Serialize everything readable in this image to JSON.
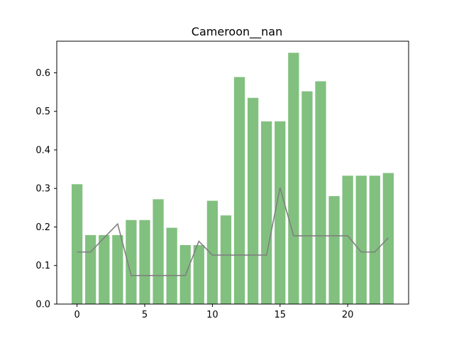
{
  "chart_data": {
    "type": "bar",
    "title": "Cameroon__nan",
    "xlabel": "",
    "ylabel": "",
    "xlim": [
      -1.5,
      24.5
    ],
    "ylim": [
      0,
      0.682
    ],
    "x_ticks": [
      0,
      5,
      10,
      15,
      20
    ],
    "y_ticks": [
      0.0,
      0.1,
      0.2,
      0.3,
      0.4,
      0.5,
      0.6
    ],
    "x_tick_labels": [
      "0",
      "5",
      "10",
      "15",
      "20"
    ],
    "y_tick_labels": [
      "0.0",
      "0.1",
      "0.2",
      "0.3",
      "0.4",
      "0.5",
      "0.6"
    ],
    "grid": false,
    "colors": {
      "bars": "#81c07f",
      "line": "#808080"
    },
    "series": [
      {
        "type": "bar",
        "x": [
          0,
          1,
          2,
          3,
          4,
          5,
          6,
          7,
          8,
          9,
          10,
          11,
          12,
          13,
          14,
          15,
          16,
          17,
          18,
          19,
          20,
          21,
          22,
          23
        ],
        "values": [
          0.311,
          0.179,
          0.179,
          0.179,
          0.218,
          0.218,
          0.272,
          0.198,
          0.153,
          0.153,
          0.268,
          0.23,
          0.589,
          0.535,
          0.474,
          0.474,
          0.652,
          0.552,
          0.578,
          0.28,
          0.333,
          0.333,
          0.333,
          0.34
        ]
      },
      {
        "type": "line",
        "x": [
          0,
          1,
          2,
          3,
          4,
          5,
          6,
          7,
          8,
          9,
          10,
          11,
          12,
          13,
          14,
          15,
          16,
          17,
          18,
          19,
          20,
          21,
          22,
          23
        ],
        "values": [
          0.135,
          0.135,
          0.172,
          0.208,
          0.074,
          0.074,
          0.074,
          0.074,
          0.074,
          0.163,
          0.127,
          0.127,
          0.127,
          0.127,
          0.127,
          0.302,
          0.177,
          0.177,
          0.177,
          0.177,
          0.177,
          0.135,
          0.135,
          0.172
        ]
      }
    ]
  }
}
